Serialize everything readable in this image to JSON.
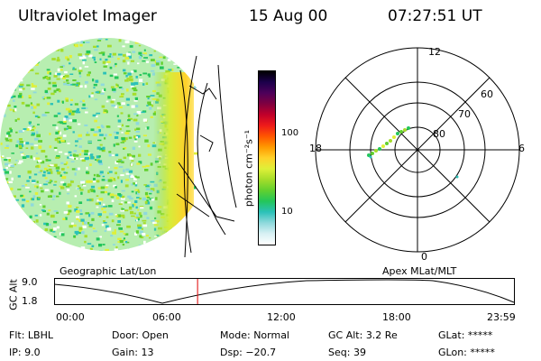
{
  "header": {
    "title": "Ultraviolet Imager",
    "date": "15 Aug 00",
    "time": "07:27:51 UT"
  },
  "colorbar": {
    "label": "photon cm⁻²s⁻¹",
    "ticks": [
      "100",
      "10"
    ],
    "colors": [
      "#ffffff",
      "#d8f1f4",
      "#8fd9dc",
      "#2bc1b8",
      "#23c65a",
      "#62d02f",
      "#a5dd2a",
      "#dff038",
      "#ffd12a",
      "#ff9900",
      "#ff5500",
      "#ee1a1a",
      "#c1002a",
      "#7f0040",
      "#4d005a",
      "#1b004b",
      "#000000"
    ]
  },
  "polar": {
    "top_label": "12",
    "bottom_label": "0",
    "left_label": "18",
    "right_label": "6",
    "ring_labels": [
      "60",
      "70",
      "80"
    ]
  },
  "timeline": {
    "axis_label": "GC Alt",
    "yticks": [
      "9.0",
      "1.8"
    ],
    "left_caption": "Geographic Lat/Lon",
    "right_caption": "Apex MLat/MLT",
    "xticks": [
      "00:00",
      "06:00",
      "12:00",
      "18:00",
      "23:59"
    ],
    "current_time_fraction": 0.312
  },
  "status": {
    "filter": {
      "key": "Flt:",
      "value": "LBHL"
    },
    "ip": {
      "key": "IP:",
      "value": "9.0"
    },
    "door": {
      "key": "Door:",
      "value": "Open"
    },
    "gain": {
      "key": "Gain:",
      "value": "13"
    },
    "mode": {
      "key": "Mode:",
      "value": "Normal"
    },
    "dsp": {
      "key": "Dsp:",
      "value": "−20.7"
    },
    "gc_alt": {
      "key": "GC Alt:",
      "value": "3.2 Re"
    },
    "seq": {
      "key": "Seq:",
      "value": "39"
    },
    "glat": {
      "key": "GLat:",
      "value": "*****"
    },
    "glon": {
      "key": "GLon:",
      "value": "*****"
    }
  }
}
